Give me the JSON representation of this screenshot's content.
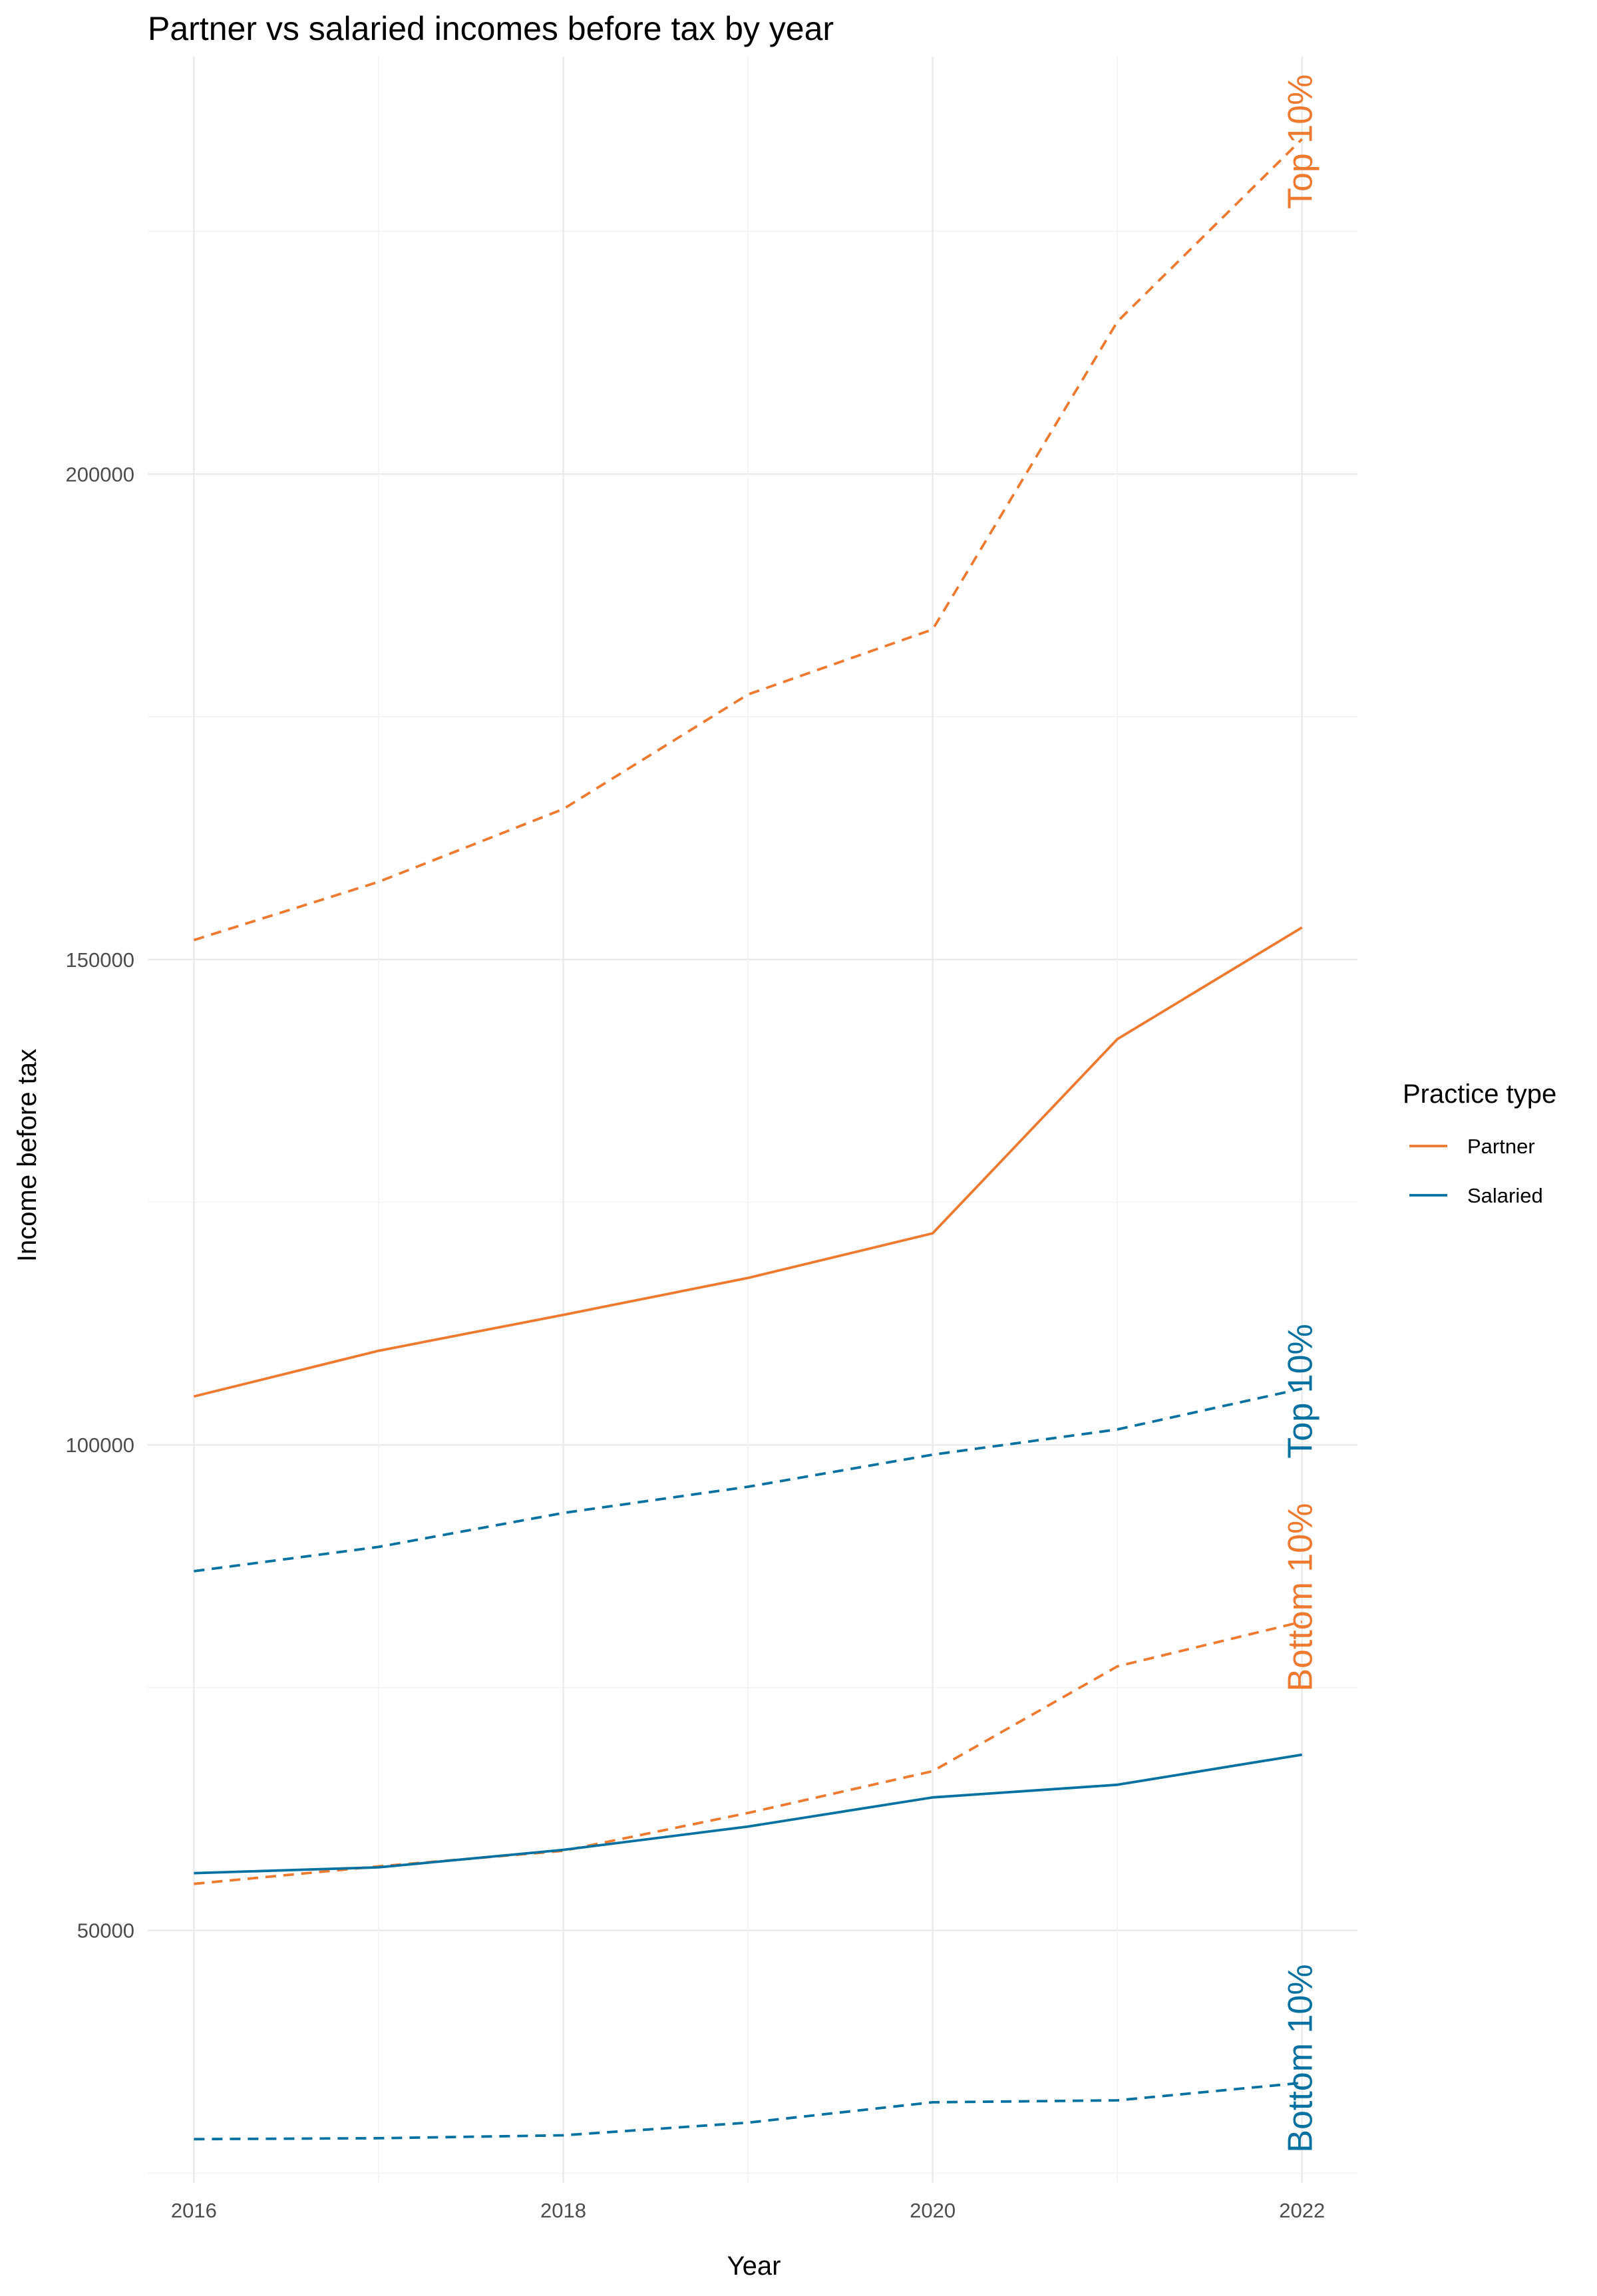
{
  "chart_data": {
    "type": "line",
    "title": "Partner vs salaried incomes before tax by year",
    "xlabel": "Year",
    "ylabel": "Income before tax",
    "x": [
      2016,
      2017,
      2018,
      2019,
      2020,
      2021,
      2022
    ],
    "xlim": [
      2015.75,
      2022.3
    ],
    "ylim": [
      24000,
      243000
    ],
    "xticks": [
      "2016",
      "2018",
      "2020",
      "2022"
    ],
    "yticks": [
      "50000",
      "100000",
      "150000",
      "200000"
    ],
    "grid": true,
    "legend": {
      "title": "Practice type",
      "position": "right",
      "entries": [
        "Partner",
        "Salaried"
      ]
    },
    "colors": {
      "Partner": "#ee7a30",
      "Salaried": "#0571a0"
    },
    "series": [
      {
        "name": "Partner",
        "group": "Partner",
        "stat": "median",
        "dash": "solid",
        "values": [
          105000,
          109700,
          113400,
          117200,
          121800,
          141800,
          153300
        ]
      },
      {
        "name": "Partner",
        "group": "Partner",
        "stat": "top",
        "dash": "dashed",
        "values": [
          152000,
          158000,
          165500,
          177300,
          184000,
          215700,
          234500
        ]
      },
      {
        "name": "Partner",
        "group": "Partner",
        "stat": "bottom",
        "dash": "dashed",
        "values": [
          54800,
          56600,
          58200,
          62100,
          66400,
          77200,
          81800
        ]
      },
      {
        "name": "Salaried",
        "group": "Salaried",
        "stat": "median",
        "dash": "solid",
        "values": [
          55900,
          56500,
          58300,
          60700,
          63700,
          65000,
          68100
        ]
      },
      {
        "name": "Salaried",
        "group": "Salaried",
        "stat": "top",
        "dash": "dashed",
        "values": [
          87000,
          89500,
          93000,
          95700,
          99000,
          101600,
          105800
        ]
      },
      {
        "name": "Salaried",
        "group": "Salaried",
        "stat": "bottom",
        "dash": "dashed",
        "values": [
          28500,
          28600,
          28900,
          30200,
          32300,
          32500,
          34300
        ]
      }
    ],
    "annotations": [
      {
        "text": "Top 10%",
        "group": "Partner",
        "x": 2022,
        "y": 234500
      },
      {
        "text": "Bottom 10%",
        "group": "Partner",
        "x": 2022,
        "y": 81800
      },
      {
        "text": "Top 10%",
        "group": "Salaried",
        "x": 2022,
        "y": 105800
      },
      {
        "text": "Bottom 10%",
        "group": "Salaried",
        "x": 2022,
        "y": 34300
      }
    ]
  }
}
